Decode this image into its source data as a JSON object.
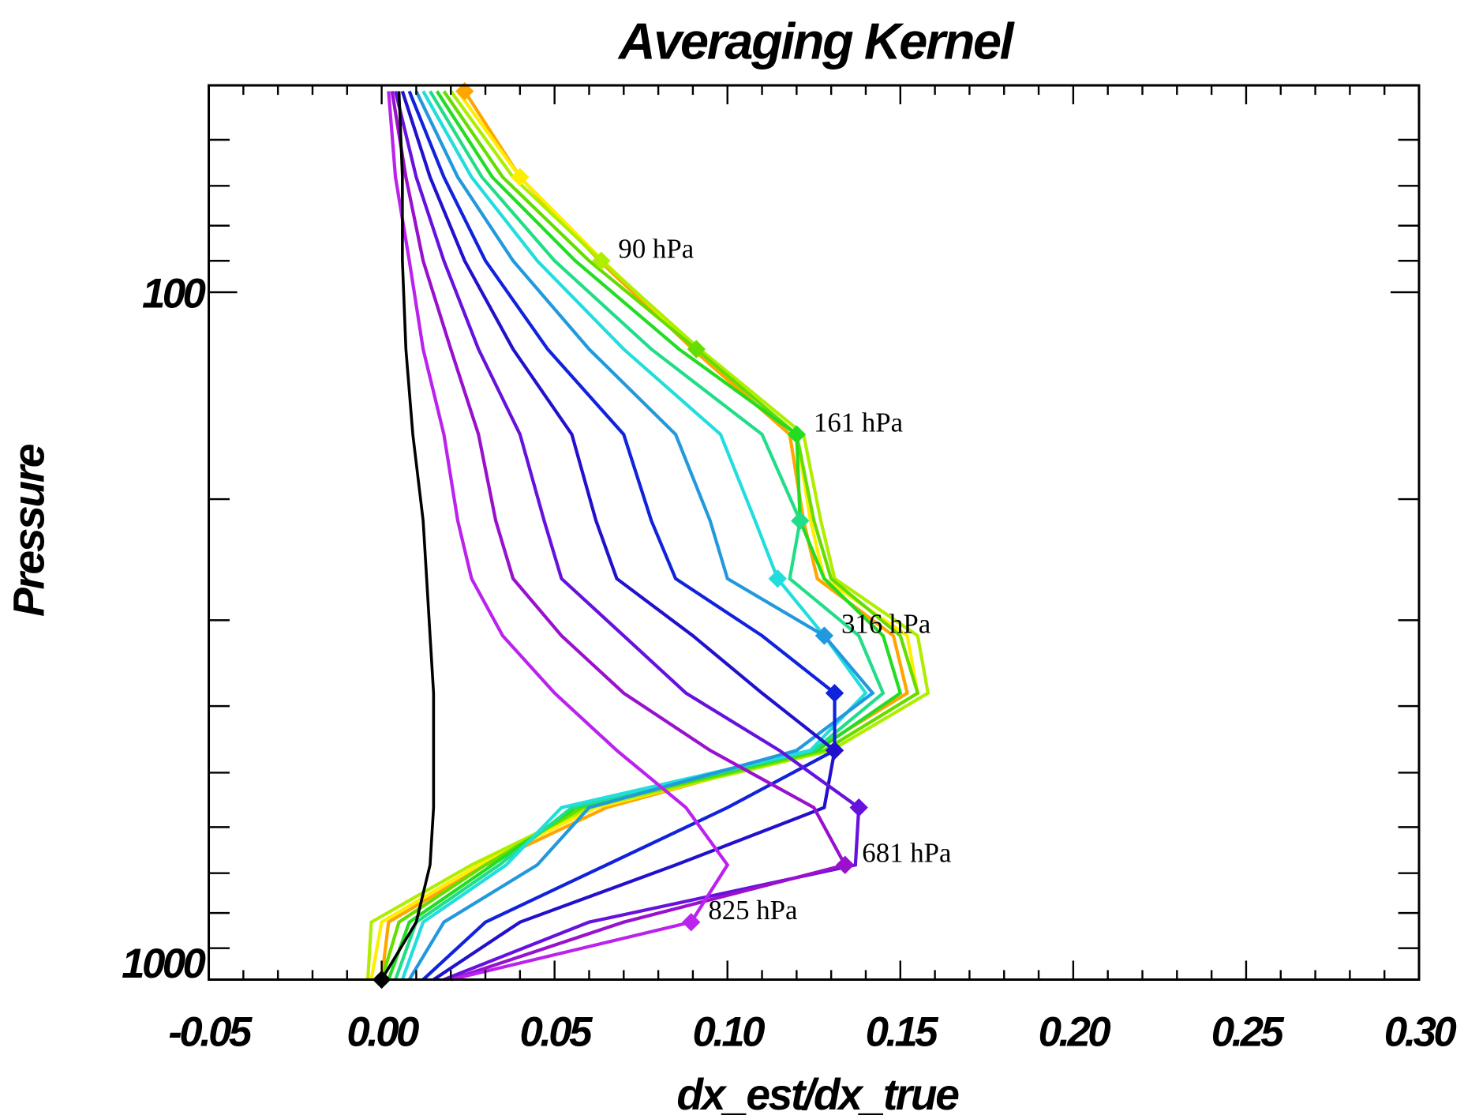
{
  "chart_data": {
    "type": "line",
    "title": "Averaging Kernel",
    "xlabel": "dx_est/dx_true",
    "ylabel": "Pressure",
    "xlim": [
      -0.05,
      0.3
    ],
    "ylim": [
      1000,
      50
    ],
    "yscale": "log",
    "x_ticks": [
      "-0.05",
      "0.00",
      "0.05",
      "0.10",
      "0.15",
      "0.20",
      "0.25",
      "0.30"
    ],
    "x_tick_values": [
      -0.05,
      0.0,
      0.05,
      0.1,
      0.15,
      0.2,
      0.25,
      0.3
    ],
    "y_ticks": [
      "100",
      "1000"
    ],
    "y_tick_values": [
      100,
      1000
    ],
    "grid": false,
    "legend": "none",
    "pressure_levels": [
      51,
      68,
      90,
      121,
      161,
      215,
      261,
      316,
      383,
      464,
      562,
      681,
      825,
      1000
    ],
    "series": [
      {
        "level": 51,
        "color": "#ffa500",
        "values": [
          0.024,
          0.04,
          0.063,
          0.09,
          0.118,
          0.122,
          0.126,
          0.148,
          0.152,
          0.125,
          0.065,
          0.03,
          0.002,
          0.0
        ]
      },
      {
        "level": 68,
        "color": "#ffee00",
        "values": [
          0.022,
          0.04,
          0.064,
          0.091,
          0.12,
          0.124,
          0.128,
          0.152,
          0.155,
          0.128,
          0.062,
          0.028,
          0.0,
          -0.003
        ]
      },
      {
        "level": 90,
        "color": "#b0ee00",
        "values": [
          0.02,
          0.038,
          0.0635,
          0.092,
          0.122,
          0.127,
          0.131,
          0.155,
          0.158,
          0.13,
          0.06,
          0.026,
          -0.003,
          -0.004
        ]
      },
      {
        "level": 121,
        "color": "#66dd00",
        "values": [
          0.018,
          0.035,
          0.06,
          0.091,
          0.12,
          0.125,
          0.13,
          0.15,
          0.155,
          0.128,
          0.058,
          0.03,
          0.005,
          0.0
        ]
      },
      {
        "level": 161,
        "color": "#22dd22",
        "values": [
          0.016,
          0.032,
          0.056,
          0.086,
          0.12,
          0.121,
          0.128,
          0.145,
          0.15,
          0.126,
          0.056,
          0.032,
          0.008,
          0.002
        ]
      },
      {
        "level": 215,
        "color": "#22dd88",
        "values": [
          0.014,
          0.029,
          0.05,
          0.078,
          0.11,
          0.121,
          0.118,
          0.138,
          0.145,
          0.125,
          0.055,
          0.034,
          0.01,
          0.004
        ]
      },
      {
        "level": 261,
        "color": "#22dddd",
        "values": [
          0.012,
          0.026,
          0.045,
          0.07,
          0.098,
          0.108,
          0.1145,
          0.128,
          0.14,
          0.124,
          0.052,
          0.036,
          0.012,
          0.006
        ]
      },
      {
        "level": 316,
        "color": "#2299dd",
        "values": [
          0.01,
          0.022,
          0.038,
          0.06,
          0.085,
          0.095,
          0.1,
          0.128,
          0.142,
          0.12,
          0.06,
          0.045,
          0.018,
          0.008
        ]
      },
      {
        "level": 383,
        "color": "#1122dd",
        "values": [
          0.008,
          0.018,
          0.03,
          0.048,
          0.07,
          0.078,
          0.085,
          0.11,
          0.131,
          0.131,
          0.1,
          0.065,
          0.03,
          0.012
        ]
      },
      {
        "level": 464,
        "color": "#2211cc",
        "values": [
          0.006,
          0.014,
          0.024,
          0.038,
          0.055,
          0.062,
          0.068,
          0.09,
          0.11,
          0.131,
          0.128,
          0.085,
          0.04,
          0.015
        ]
      },
      {
        "level": 562,
        "color": "#6611dd",
        "values": [
          0.004,
          0.01,
          0.018,
          0.028,
          0.04,
          0.047,
          0.052,
          0.07,
          0.088,
          0.115,
          0.138,
          0.137,
          0.06,
          0.018
        ]
      },
      {
        "level": 681,
        "color": "#9911cc",
        "values": [
          0.003,
          0.007,
          0.012,
          0.02,
          0.028,
          0.033,
          0.038,
          0.052,
          0.07,
          0.095,
          0.125,
          0.134,
          0.07,
          0.02
        ]
      },
      {
        "level": 825,
        "color": "#bb22ee",
        "values": [
          0.002,
          0.004,
          0.008,
          0.012,
          0.018,
          0.022,
          0.026,
          0.035,
          0.05,
          0.068,
          0.088,
          0.1,
          0.0895,
          0.02
        ]
      },
      {
        "level": 1000,
        "color": "#000000",
        "values": [
          0.005,
          0.006,
          0.006,
          0.007,
          0.009,
          0.012,
          0.013,
          0.014,
          0.015,
          0.015,
          0.015,
          0.014,
          0.01,
          0.0
        ]
      }
    ],
    "annotations": [
      {
        "text": "90 hPa",
        "level": 90
      },
      {
        "text": "161 hPa",
        "level": 161
      },
      {
        "text": "316 hPa",
        "level": 316
      },
      {
        "text": "681 hPa",
        "level": 681
      },
      {
        "text": "825 hPa",
        "level": 825
      }
    ]
  }
}
